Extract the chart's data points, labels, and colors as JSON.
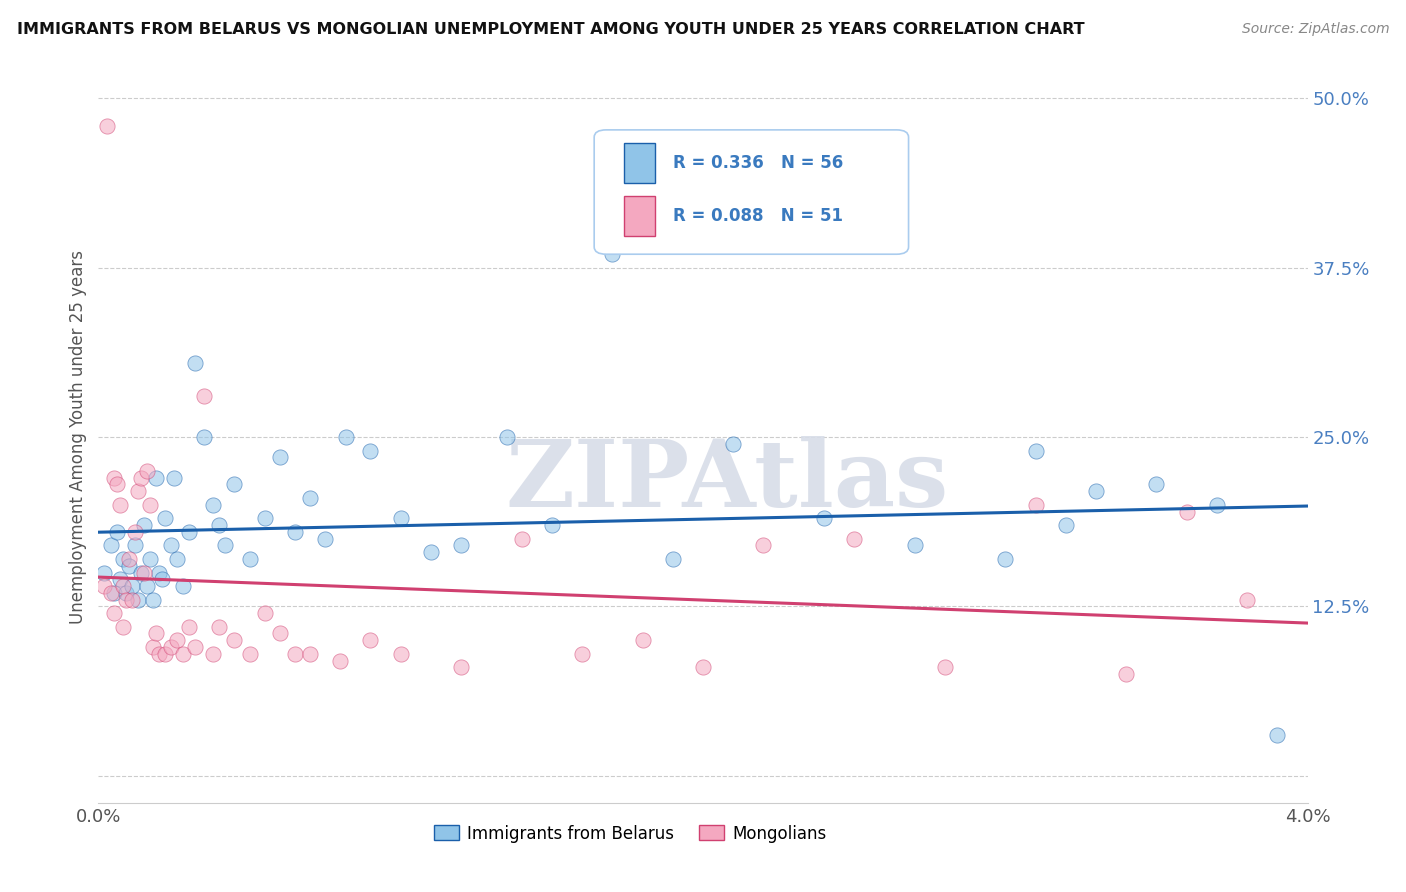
{
  "title": "IMMIGRANTS FROM BELARUS VS MONGOLIAN UNEMPLOYMENT AMONG YOUTH UNDER 25 YEARS CORRELATION CHART",
  "source": "Source: ZipAtlas.com",
  "ylabel": "Unemployment Among Youth under 25 years",
  "xlim": [
    0.0,
    4.0
  ],
  "ylim": [
    -2.0,
    52.0
  ],
  "yticks": [
    0.0,
    12.5,
    25.0,
    37.5,
    50.0
  ],
  "ytick_labels": [
    "",
    "12.5%",
    "25.0%",
    "37.5%",
    "50.0%"
  ],
  "xtick_positions": [
    0.0,
    4.0
  ],
  "xtick_labels": [
    "0.0%",
    "4.0%"
  ],
  "legend1_label": "Immigrants from Belarus",
  "legend2_label": "Mongolians",
  "r1": 0.336,
  "n1": 56,
  "r2": 0.088,
  "n2": 51,
  "color_blue": "#90c4e8",
  "color_pink": "#f4a8c0",
  "color_line_blue": "#1a5faa",
  "color_line_pink": "#d04070",
  "watermark": "ZIPAtlas",
  "watermark_color": "#d8dde8",
  "blue_x": [
    0.02,
    0.04,
    0.05,
    0.06,
    0.07,
    0.08,
    0.09,
    0.1,
    0.11,
    0.12,
    0.13,
    0.14,
    0.15,
    0.16,
    0.17,
    0.18,
    0.19,
    0.2,
    0.21,
    0.22,
    0.24,
    0.25,
    0.26,
    0.28,
    0.3,
    0.32,
    0.35,
    0.38,
    0.4,
    0.42,
    0.45,
    0.5,
    0.55,
    0.6,
    0.65,
    0.7,
    0.75,
    0.82,
    0.9,
    1.0,
    1.1,
    1.2,
    1.35,
    1.5,
    1.7,
    1.9,
    2.1,
    2.4,
    2.7,
    3.0,
    3.1,
    3.2,
    3.3,
    3.5,
    3.7,
    3.9
  ],
  "blue_y": [
    15.0,
    17.0,
    13.5,
    18.0,
    14.5,
    16.0,
    13.5,
    15.5,
    14.0,
    17.0,
    13.0,
    15.0,
    18.5,
    14.0,
    16.0,
    13.0,
    22.0,
    15.0,
    14.5,
    19.0,
    17.0,
    22.0,
    16.0,
    14.0,
    18.0,
    30.5,
    25.0,
    20.0,
    18.5,
    17.0,
    21.5,
    16.0,
    19.0,
    23.5,
    18.0,
    20.5,
    17.5,
    25.0,
    24.0,
    19.0,
    16.5,
    17.0,
    25.0,
    18.5,
    38.5,
    16.0,
    24.5,
    19.0,
    17.0,
    16.0,
    24.0,
    18.5,
    21.0,
    21.5,
    20.0,
    3.0
  ],
  "pink_x": [
    0.02,
    0.03,
    0.04,
    0.05,
    0.06,
    0.07,
    0.08,
    0.09,
    0.1,
    0.11,
    0.12,
    0.13,
    0.14,
    0.15,
    0.16,
    0.17,
    0.18,
    0.19,
    0.2,
    0.22,
    0.24,
    0.26,
    0.28,
    0.3,
    0.32,
    0.35,
    0.38,
    0.4,
    0.45,
    0.5,
    0.55,
    0.6,
    0.65,
    0.7,
    0.8,
    0.9,
    1.0,
    1.2,
    1.4,
    1.6,
    1.8,
    2.0,
    2.2,
    2.5,
    2.8,
    3.1,
    3.4,
    3.6,
    3.8,
    0.05,
    0.08
  ],
  "pink_y": [
    14.0,
    48.0,
    13.5,
    22.0,
    21.5,
    20.0,
    14.0,
    13.0,
    16.0,
    13.0,
    18.0,
    21.0,
    22.0,
    15.0,
    22.5,
    20.0,
    9.5,
    10.5,
    9.0,
    9.0,
    9.5,
    10.0,
    9.0,
    11.0,
    9.5,
    28.0,
    9.0,
    11.0,
    10.0,
    9.0,
    12.0,
    10.5,
    9.0,
    9.0,
    8.5,
    10.0,
    9.0,
    8.0,
    17.5,
    9.0,
    10.0,
    8.0,
    17.0,
    17.5,
    8.0,
    20.0,
    7.5,
    19.5,
    13.0,
    12.0,
    11.0
  ]
}
